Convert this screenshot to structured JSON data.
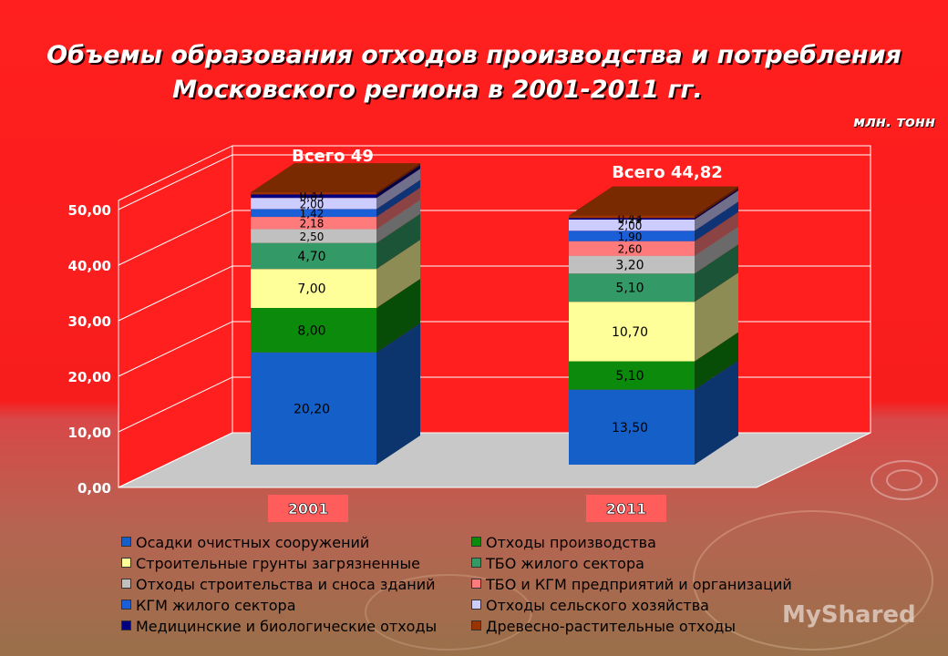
{
  "title_line1": "Объемы образования отходов производства и потребления",
  "title_line2": "Московского региона  в 2001-2011 гг.",
  "unit": "млн. тонн",
  "watermark": "MyShared",
  "colors": {
    "s1": "#1560c8",
    "s2": "#0c8a0c",
    "s3": "#ffff99",
    "s4": "#339966",
    "s5": "#c0c0c0",
    "s6": "#ff7a7a",
    "s7": "#1a5fd6",
    "s8": "#ccccff",
    "s9": "#000080",
    "s10": "#993300"
  },
  "chart_data": {
    "type": "bar",
    "stacked": true,
    "three_d": true,
    "categories": [
      "2001",
      "2011"
    ],
    "ylim": [
      0,
      50
    ],
    "yticks": [
      "0,00",
      "10,00",
      "20,00",
      "30,00",
      "40,00",
      "50,00"
    ],
    "grid": true,
    "legend_placement": "bottom",
    "totals": [
      "Всего 49",
      "Всего 44,82"
    ],
    "series": [
      {
        "name": "Осадки очистных сооружений",
        "values": [
          20.2,
          13.5
        ],
        "labels": [
          "20,20",
          "13,50"
        ]
      },
      {
        "name": "Отходы производства",
        "values": [
          8.0,
          5.1
        ],
        "labels": [
          "8,00",
          "5,10"
        ]
      },
      {
        "name": "Строительные грунты загрязненные",
        "values": [
          7.0,
          10.7
        ],
        "labels": [
          "7,00",
          "10,70"
        ]
      },
      {
        "name": "ТБО жилого сектора",
        "values": [
          4.7,
          5.1
        ],
        "labels": [
          "4,70",
          "5,10"
        ]
      },
      {
        "name": "Отходы строительства и сноса зданий",
        "values": [
          2.5,
          3.2
        ],
        "labels": [
          "2,50",
          "3,20"
        ]
      },
      {
        "name": "ТБО и КГМ предприятий и организаций",
        "values": [
          2.18,
          2.6
        ],
        "labels": [
          "2,18",
          "2,60"
        ]
      },
      {
        "name": "КГМ жилого сектора",
        "values": [
          1.42,
          1.9
        ],
        "labels": [
          "1,42",
          "1,90"
        ]
      },
      {
        "name": "Отходы сельского хозяйства",
        "values": [
          2.0,
          2.0
        ],
        "labels": [
          "2,00",
          "2,00"
        ]
      },
      {
        "name": "Медицинские и биологические отходы",
        "values": [
          0.63,
          0.29
        ],
        "labels": [
          "0,63",
          "0,29"
        ]
      },
      {
        "name": "Древесно-растительные отходы",
        "values": [
          0.37,
          0.43
        ],
        "labels": [
          "0,37",
          "0,43"
        ]
      }
    ]
  }
}
